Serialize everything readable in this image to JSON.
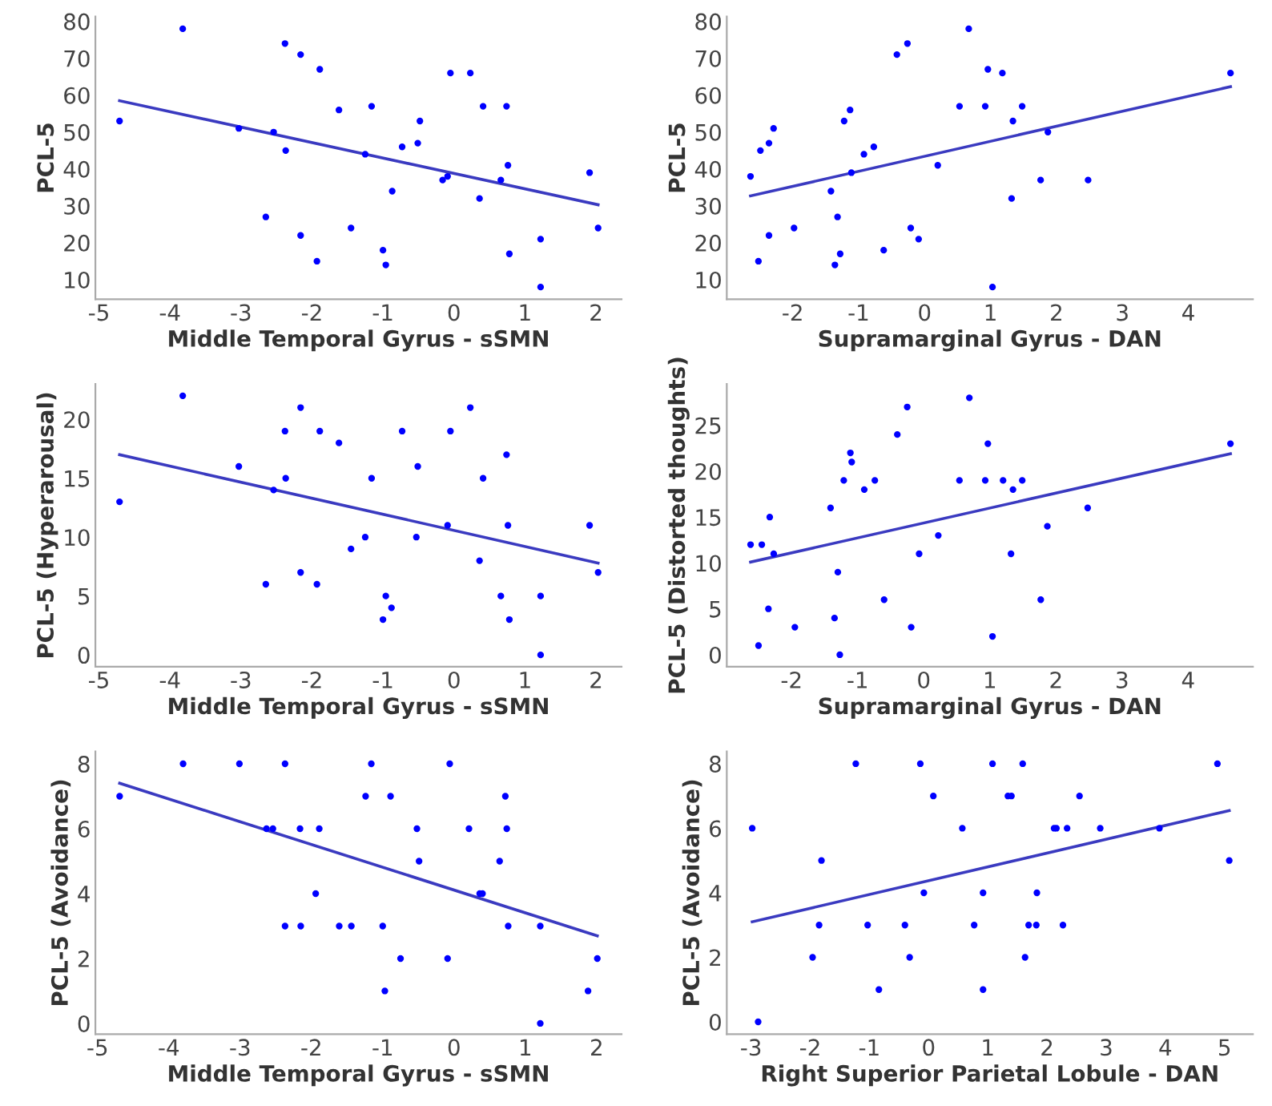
{
  "chart_data": [
    {
      "type": "scatter",
      "xlabel": "Middle Temporal Gyrus - sSMN",
      "ylabel": "PCL-5",
      "xlim": [
        -5.05,
        2.36
      ],
      "ylim": [
        4.7,
        81.3
      ],
      "xticks": [
        -5,
        -4,
        -3,
        -2,
        -1,
        0,
        1,
        2
      ],
      "yticks": [
        10,
        20,
        30,
        40,
        50,
        60,
        70,
        80
      ],
      "grid": false,
      "legend": false,
      "series": [
        {
          "marker": "circle",
          "color": "#0000ff",
          "x": [
            -4.71,
            -3.82,
            -3.03,
            -2.38,
            -2.16,
            -1.89,
            -2.54,
            -2.37,
            -2.65,
            -2.16,
            -1.93,
            -1.62,
            -1.45,
            -1.16,
            -1.25,
            -1.0,
            -0.96,
            -0.87,
            -0.73,
            -0.51,
            -0.48,
            -0.16,
            -0.09,
            -0.05,
            0.23,
            0.36,
            0.41,
            0.66,
            0.74,
            0.76,
            0.78,
            1.22,
            1.22,
            1.91,
            2.03
          ],
          "values": [
            53,
            78,
            51,
            74,
            71,
            67,
            50,
            45,
            27,
            22,
            15,
            56,
            24,
            57,
            44,
            18,
            14,
            34,
            46,
            47,
            53,
            37,
            38,
            66,
            66,
            32,
            57,
            37,
            57,
            41,
            17,
            21,
            8,
            39,
            24
          ]
        },
        {
          "type": "line",
          "marker": "none",
          "color": "#3a3ac0",
          "x": [
            -4.71,
            2.03
          ],
          "values": [
            58.5,
            30.3
          ]
        }
      ]
    },
    {
      "type": "scatter",
      "xlabel": "Supramarginal Gyrus - DAN",
      "ylabel": "PCL-5",
      "xlim": [
        -3.0,
        4.98
      ],
      "ylim": [
        4.7,
        81.3
      ],
      "xticks": [
        -2,
        -1,
        0,
        1,
        2,
        3,
        4
      ],
      "yticks": [
        10,
        20,
        30,
        40,
        50,
        60,
        70,
        80
      ],
      "grid": false,
      "legend": false,
      "series": [
        {
          "marker": "circle",
          "color": "#0000ff",
          "x": [
            -2.64,
            -2.49,
            -2.52,
            -2.36,
            -2.29,
            -2.36,
            -1.98,
            -1.42,
            -1.32,
            -1.36,
            -1.28,
            -1.22,
            -1.13,
            -1.11,
            -0.92,
            -0.77,
            -0.62,
            -0.42,
            -0.26,
            -0.21,
            -0.09,
            0.2,
            0.53,
            0.67,
            0.92,
            0.96,
            1.03,
            1.18,
            1.32,
            1.34,
            1.48,
            1.76,
            1.87,
            2.48,
            4.64
          ],
          "values": [
            38,
            45,
            15,
            47,
            51,
            22,
            24,
            34,
            27,
            14,
            17,
            53,
            56,
            39,
            44,
            46,
            18,
            71,
            74,
            24,
            21,
            41,
            57,
            78,
            57,
            67,
            8,
            66,
            32,
            53,
            57,
            37,
            50,
            37,
            66
          ]
        },
        {
          "type": "line",
          "marker": "none",
          "color": "#3a3ac0",
          "x": [
            -2.64,
            4.64
          ],
          "values": [
            32.7,
            62.3
          ]
        }
      ]
    },
    {
      "type": "scatter",
      "xlabel": "Middle Temporal Gyrus - sSMN",
      "ylabel": "PCL-5 (Hyperarousal)",
      "xlim": [
        -5.05,
        2.36
      ],
      "ylim": [
        -1.0,
        23.0
      ],
      "xticks": [
        -5,
        -4,
        -3,
        -2,
        -1,
        0,
        1,
        2
      ],
      "yticks": [
        0,
        5,
        10,
        15,
        20
      ],
      "grid": false,
      "legend": false,
      "series": [
        {
          "marker": "circle",
          "color": "#0000ff",
          "x": [
            -4.71,
            -3.82,
            -3.03,
            -2.38,
            -2.37,
            -2.16,
            -1.89,
            -2.54,
            -2.65,
            -2.16,
            -1.93,
            -1.62,
            -1.45,
            -1.16,
            -1.25,
            -1.0,
            -0.96,
            -0.88,
            -0.73,
            -0.51,
            -0.53,
            -0.09,
            -0.05,
            0.23,
            0.36,
            0.41,
            0.66,
            0.74,
            0.76,
            0.78,
            1.22,
            1.22,
            1.91,
            2.03
          ],
          "values": [
            13,
            22,
            16,
            19,
            15,
            21,
            19,
            14,
            6,
            7,
            6,
            18,
            9,
            15,
            10,
            3,
            5,
            4,
            19,
            16,
            10,
            11,
            19,
            21,
            8,
            15,
            5,
            17,
            11,
            3,
            5,
            0,
            11,
            7
          ]
        },
        {
          "type": "line",
          "marker": "none",
          "color": "#3a3ac0",
          "x": [
            -4.71,
            2.03
          ],
          "values": [
            17.0,
            7.8
          ]
        }
      ]
    },
    {
      "type": "scatter",
      "xlabel": "Supramarginal Gyrus - DAN",
      "ylabel": "PCL-5 (Distorted thoughts)",
      "xlim": [
        -2.98,
        4.98
      ],
      "ylim": [
        -1.3,
        29.5
      ],
      "xticks": [
        -2,
        -1,
        0,
        1,
        2,
        3,
        4
      ],
      "yticks": [
        0,
        5,
        10,
        15,
        20,
        25
      ],
      "grid": false,
      "legend": false,
      "series": [
        {
          "marker": "circle",
          "color": "#0000ff",
          "x": [
            -2.62,
            -2.45,
            -2.33,
            -2.27,
            -2.35,
            -2.5,
            -1.95,
            -1.41,
            -1.3,
            -1.35,
            -1.27,
            -1.21,
            -1.11,
            -1.09,
            -0.9,
            -0.74,
            -0.6,
            -0.4,
            -0.25,
            -0.19,
            -0.07,
            0.22,
            0.54,
            0.69,
            0.93,
            0.97,
            1.04,
            1.2,
            1.32,
            1.35,
            1.49,
            1.77,
            1.87,
            2.48,
            4.64
          ],
          "values": [
            12,
            12,
            15,
            11,
            5,
            1,
            3,
            16,
            9,
            4,
            0,
            19,
            22,
            21,
            18,
            19,
            6,
            24,
            27,
            3,
            11,
            13,
            19,
            28,
            19,
            23,
            2,
            19,
            11,
            18,
            19,
            6,
            14,
            16,
            23
          ]
        },
        {
          "type": "line",
          "marker": "none",
          "color": "#3a3ac0",
          "x": [
            -2.62,
            4.64
          ],
          "values": [
            10.1,
            21.9
          ]
        }
      ]
    },
    {
      "type": "scatter",
      "xlabel": "Middle Temporal Gyrus - sSMN",
      "ylabel": "PCL-5 (Avoidance)",
      "xlim": [
        -5.03,
        2.35
      ],
      "ylim": [
        -0.33,
        8.38
      ],
      "xticks": [
        -5,
        -4,
        -3,
        -2,
        -1,
        0,
        1,
        2
      ],
      "yticks": [
        0,
        2,
        4,
        6,
        8
      ],
      "grid": false,
      "legend": false,
      "series": [
        {
          "marker": "circle",
          "color": "#0000ff",
          "x": [
            -4.69,
            -3.8,
            -3.01,
            -2.37,
            -2.63,
            -2.54,
            -2.37,
            -2.16,
            -2.15,
            -1.94,
            -1.89,
            -1.61,
            -1.44,
            -1.24,
            -1.16,
            -1.0,
            -0.97,
            -0.89,
            -0.75,
            -0.52,
            -0.49,
            -0.09,
            -0.06,
            0.21,
            0.36,
            0.4,
            0.64,
            0.72,
            0.74,
            0.76,
            1.21,
            1.21,
            1.88,
            2.01
          ],
          "values": [
            7,
            8,
            8,
            8,
            6,
            6,
            3,
            6,
            3,
            4,
            6,
            3,
            3,
            7,
            8,
            3,
            1,
            7,
            2,
            6,
            5,
            2,
            8,
            6,
            4,
            4,
            5,
            7,
            6,
            3,
            3,
            0,
            1,
            2
          ]
        },
        {
          "type": "line",
          "marker": "none",
          "color": "#3a3ac0",
          "x": [
            -4.69,
            2.01
          ],
          "values": [
            7.4,
            2.7
          ]
        }
      ]
    },
    {
      "type": "scatter",
      "xlabel": "Right Superior Parietal Lobule - DAN",
      "ylabel": "PCL-5 (Avoidance)",
      "xlim": [
        -3.41,
        5.48
      ],
      "ylim": [
        -0.38,
        8.38
      ],
      "xticks": [
        -3,
        -2,
        -1,
        0,
        1,
        2,
        3,
        4,
        5
      ],
      "yticks": [
        0,
        2,
        4,
        6,
        8
      ],
      "grid": false,
      "legend": false,
      "series": [
        {
          "marker": "circle",
          "color": "#0000ff",
          "x": [
            -2.98,
            -2.88,
            -1.96,
            -1.85,
            -1.81,
            -1.23,
            -1.03,
            -0.84,
            -0.4,
            -0.32,
            -0.14,
            -0.08,
            0.08,
            0.57,
            0.77,
            0.92,
            0.92,
            1.08,
            1.34,
            1.4,
            1.59,
            1.63,
            1.69,
            1.83,
            1.82,
            2.12,
            2.16,
            2.27,
            2.34,
            2.55,
            2.9,
            3.9,
            4.88,
            5.08
          ],
          "values": [
            6,
            0,
            2,
            3,
            5,
            8,
            3,
            1,
            3,
            2,
            8,
            4,
            7,
            6,
            3,
            4,
            1,
            8,
            7,
            7,
            8,
            2,
            3,
            4,
            3,
            6,
            6,
            3,
            6,
            7,
            6,
            6,
            8,
            5
          ]
        },
        {
          "type": "line",
          "marker": "none",
          "color": "#3a3ac0",
          "x": [
            -2.98,
            5.08
          ],
          "values": [
            3.1,
            6.55
          ]
        }
      ]
    }
  ]
}
